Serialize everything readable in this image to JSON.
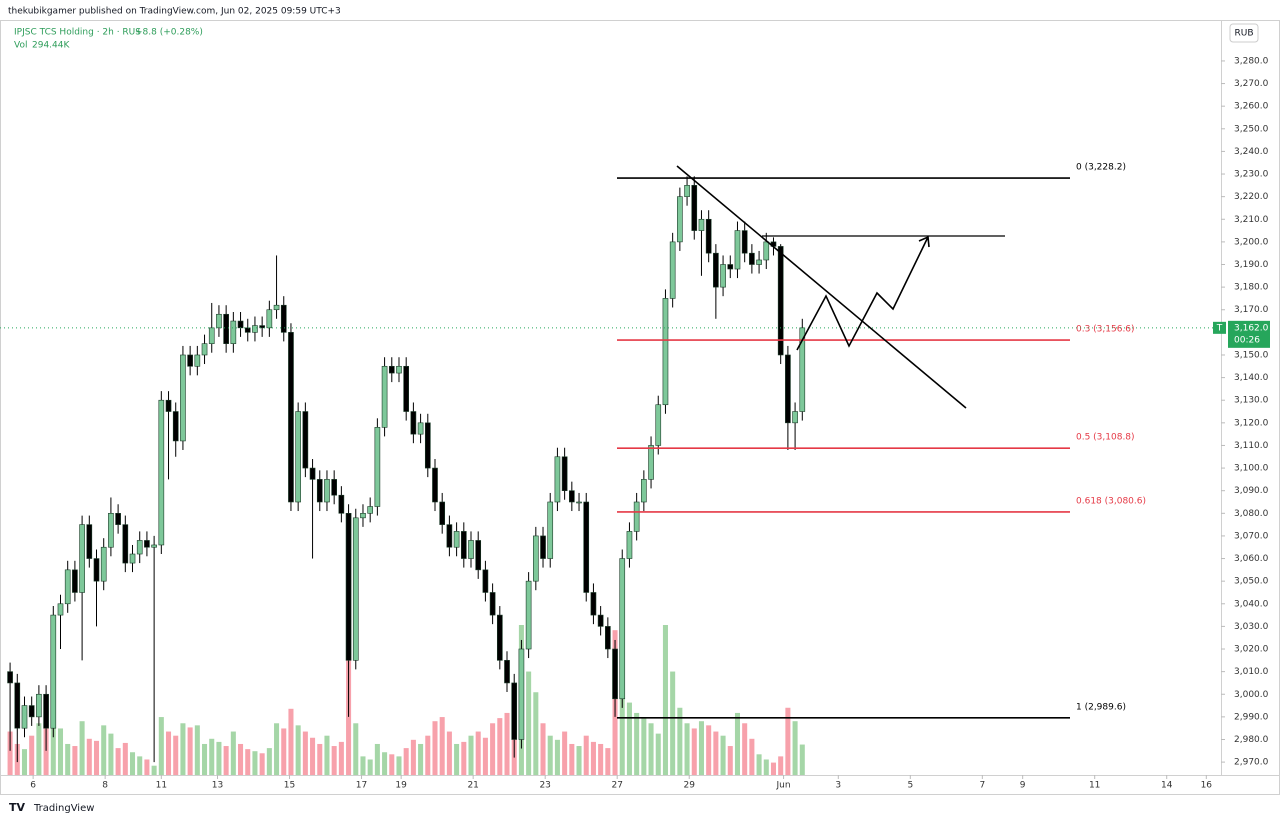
{
  "header": {
    "publisher": "thekubikgamer published on TradingView.com, Jun 02, 2025 09:59 UTC+3",
    "symbol": "IPJSC TCS Holding · 2h · RUS",
    "change": "+8.8 (+0.28%)",
    "volume_label": "Vol",
    "volume_value": "294.44K",
    "currency": "RUB",
    "brand": "TradingView"
  },
  "chart_data": {
    "type": "candlestick",
    "up_color": "#7ec89a",
    "down_color": "#000000",
    "wick_color": "#000000",
    "up_volume_color": "#a5d6a7",
    "down_volume_color": "#f7a1ab",
    "open": [
      3010,
      3005,
      2985,
      2995,
      2990,
      3000,
      2985,
      3035,
      3040,
      3055,
      3045,
      3075,
      3060,
      3050,
      3065,
      3080,
      3075,
      3058,
      3062,
      3068,
      3065,
      3066,
      3130,
      3125,
      3112,
      3150,
      3145,
      3150,
      3155,
      3162,
      3168,
      3155,
      3165,
      3162,
      3160,
      3163,
      3162,
      3170,
      3172,
      3160,
      3085,
      3125,
      3100,
      3095,
      3085,
      3095,
      3088,
      3080,
      3015,
      3078,
      3080,
      3083,
      3118,
      3145,
      3142,
      3145,
      3125,
      3115,
      3120,
      3100,
      3085,
      3075,
      3065,
      3072,
      3060,
      3068,
      3055,
      3045,
      3035,
      3015,
      3005,
      2980,
      3020,
      3050,
      3070,
      3060,
      3085,
      3105,
      3090,
      3085,
      3085,
      3045,
      3035,
      3030,
      3020,
      2998,
      3060,
      3072,
      3085,
      3095,
      3110,
      3128,
      3175,
      3200,
      3220,
      3225,
      3205,
      3210,
      3195,
      3180,
      3190,
      3188,
      3205,
      3195,
      3190,
      3192,
      3200,
      3198,
      3150,
      3120,
      3125
    ],
    "high": [
      3014,
      3009,
      2999,
      2999,
      3004,
      3004,
      3039,
      3044,
      3059,
      3059,
      3079,
      3079,
      3064,
      3069,
      3087,
      3084,
      3079,
      3066,
      3072,
      3072,
      3070,
      3134,
      3134,
      3129,
      3154,
      3154,
      3154,
      3159,
      3173,
      3172,
      3172,
      3169,
      3169,
      3166,
      3167,
      3167,
      3174,
      3194,
      3176,
      3164,
      3129,
      3129,
      3104,
      3099,
      3099,
      3099,
      3092,
      3084,
      3082,
      3084,
      3087,
      3122,
      3149,
      3149,
      3149,
      3149,
      3129,
      3124,
      3124,
      3104,
      3089,
      3079,
      3076,
      3076,
      3072,
      3072,
      3059,
      3049,
      3039,
      3019,
      3009,
      3024,
      3054,
      3074,
      3074,
      3089,
      3109,
      3109,
      3094,
      3089,
      3089,
      3049,
      3039,
      3034,
      3024,
      3064,
      3076,
      3089,
      3099,
      3114,
      3132,
      3179,
      3204,
      3224,
      3229,
      3229,
      3214,
      3214,
      3199,
      3194,
      3194,
      3209,
      3209,
      3199,
      3196,
      3204,
      3202,
      3199,
      3154,
      3129,
      3166
    ],
    "low": [
      2975,
      2970,
      2981,
      2986,
      2986,
      2975,
      2981,
      3020,
      3036,
      3041,
      3015,
      3056,
      3030,
      3046,
      3061,
      3071,
      3054,
      3054,
      3058,
      3061,
      2970,
      3062,
      3095,
      3105,
      3108,
      3141,
      3141,
      3146,
      3151,
      3158,
      3151,
      3151,
      3158,
      3156,
      3156,
      3158,
      3158,
      3166,
      3156,
      3081,
      3081,
      3096,
      3060,
      3081,
      3081,
      3084,
      3076,
      2990,
      3011,
      3074,
      3076,
      3079,
      3114,
      3138,
      3138,
      3121,
      3111,
      3111,
      3096,
      3081,
      3071,
      3061,
      3061,
      3056,
      3056,
      3051,
      3041,
      3031,
      3011,
      3001,
      2972,
      2976,
      3016,
      3046,
      3056,
      3056,
      3081,
      3086,
      3081,
      3081,
      3041,
      3031,
      3026,
      3016,
      2990,
      2994,
      3056,
      3068,
      3081,
      3091,
      3106,
      3124,
      3171,
      3196,
      3216,
      3201,
      3185,
      3191,
      3166,
      3176,
      3184,
      3184,
      3191,
      3186,
      3186,
      3188,
      3194,
      3146,
      3108,
      3108,
      3121
    ],
    "close": [
      3005,
      2985,
      2995,
      2990,
      3000,
      2985,
      3035,
      3040,
      3055,
      3045,
      3075,
      3060,
      3050,
      3065,
      3080,
      3075,
      3058,
      3062,
      3068,
      3065,
      3066,
      3130,
      3125,
      3112,
      3150,
      3145,
      3150,
      3155,
      3162,
      3168,
      3155,
      3165,
      3162,
      3160,
      3163,
      3162,
      3170,
      3172,
      3160,
      3085,
      3125,
      3100,
      3095,
      3085,
      3095,
      3088,
      3080,
      3015,
      3078,
      3080,
      3083,
      3118,
      3145,
      3142,
      3145,
      3125,
      3115,
      3120,
      3100,
      3085,
      3075,
      3065,
      3072,
      3060,
      3068,
      3055,
      3045,
      3035,
      3015,
      3005,
      2980,
      3020,
      3050,
      3070,
      3060,
      3085,
      3105,
      3090,
      3085,
      3085,
      3045,
      3035,
      3030,
      3020,
      2998,
      3060,
      3072,
      3085,
      3095,
      3110,
      3128,
      3175,
      3200,
      3220,
      3225,
      3205,
      3210,
      3195,
      3180,
      3190,
      3188,
      3205,
      3195,
      3190,
      3192,
      3200,
      3198,
      3150,
      3120,
      3125,
      3162
    ],
    "volume": [
      420,
      300,
      250,
      380,
      500,
      620,
      700,
      450,
      300,
      280,
      520,
      350,
      330,
      480,
      400,
      260,
      310,
      220,
      180,
      150,
      90,
      560,
      420,
      380,
      500,
      460,
      480,
      300,
      350,
      320,
      280,
      420,
      300,
      250,
      230,
      210,
      260,
      500,
      450,
      640,
      480,
      420,
      360,
      300,
      380,
      280,
      320,
      1200,
      500,
      180,
      150,
      300,
      220,
      200,
      180,
      260,
      340,
      300,
      380,
      520,
      560,
      420,
      300,
      320,
      380,
      420,
      360,
      500,
      550,
      600,
      700,
      1450,
      1000,
      800,
      500,
      380,
      340,
      420,
      300,
      280,
      380,
      320,
      300,
      260,
      1400,
      900,
      700,
      600,
      550,
      500,
      400,
      1450,
      1000,
      650,
      500,
      450,
      520,
      480,
      420,
      380,
      280,
      600,
      500,
      350,
      200,
      150,
      120,
      180,
      650,
      520,
      294.44
    ],
    "xlim": [
      -1.4,
      168
    ],
    "xticks": [
      {
        "value": 3.2,
        "label": "6"
      },
      {
        "value": 13.2,
        "label": "8"
      },
      {
        "value": 21,
        "label": "11"
      },
      {
        "value": 28.8,
        "label": "13"
      },
      {
        "value": 38.8,
        "label": "15"
      },
      {
        "value": 48.8,
        "label": "17"
      },
      {
        "value": 54.3,
        "label": "19"
      },
      {
        "value": 64.3,
        "label": "21"
      },
      {
        "value": 74.3,
        "label": "23"
      },
      {
        "value": 84.3,
        "label": "27"
      },
      {
        "value": 94.3,
        "label": "29"
      },
      {
        "value": 107.4,
        "label": "Jun"
      },
      {
        "value": 115,
        "label": "3"
      },
      {
        "value": 125,
        "label": "5"
      },
      {
        "value": 135,
        "label": "7"
      },
      {
        "value": 140.6,
        "label": "9"
      },
      {
        "value": 150.6,
        "label": "11"
      },
      {
        "value": 160.6,
        "label": "14"
      },
      {
        "value": 166.1,
        "label": "16"
      }
    ],
    "ylim": [
      2964.3,
      3298.1
    ],
    "yticks": [
      {
        "value": 2970,
        "label": "2,970.0"
      },
      {
        "value": 2980,
        "label": "2,980.0"
      },
      {
        "value": 2990,
        "label": "2,990.0"
      },
      {
        "value": 3000,
        "label": "3,000.0"
      },
      {
        "value": 3010,
        "label": "3,010.0"
      },
      {
        "value": 3020,
        "label": "3,020.0"
      },
      {
        "value": 3030,
        "label": "3,030.0"
      },
      {
        "value": 3040,
        "label": "3,040.0"
      },
      {
        "value": 3050,
        "label": "3,050.0"
      },
      {
        "value": 3060,
        "label": "3,060.0"
      },
      {
        "value": 3070,
        "label": "3,070.0"
      },
      {
        "value": 3080,
        "label": "3,080.0"
      },
      {
        "value": 3090,
        "label": "3,090.0"
      },
      {
        "value": 3100,
        "label": "3,100.0"
      },
      {
        "value": 3110,
        "label": "3,110.0"
      },
      {
        "value": 3120,
        "label": "3,120.0"
      },
      {
        "value": 3130,
        "label": "3,130.0"
      },
      {
        "value": 3140,
        "label": "3,140.0"
      },
      {
        "value": 3150,
        "label": "3,150.0"
      },
      {
        "value": 3160,
        "label": "3,160.0"
      },
      {
        "value": 3170,
        "label": "3,170.0"
      },
      {
        "value": 3180,
        "label": "3,180.0"
      },
      {
        "value": 3190,
        "label": "3,190.0"
      },
      {
        "value": 3200,
        "label": "3,200.0"
      },
      {
        "value": 3210,
        "label": "3,210.0"
      },
      {
        "value": 3220,
        "label": "3,220.0"
      },
      {
        "value": 3230,
        "label": "3,230.0"
      },
      {
        "value": 3240,
        "label": "3,240.0"
      },
      {
        "value": 3250,
        "label": "3,250.0"
      },
      {
        "value": 3260,
        "label": "3,260.0"
      },
      {
        "value": 3270,
        "label": "3,270.0"
      },
      {
        "value": 3280,
        "label": "3,280.0"
      }
    ],
    "fib_levels": [
      {
        "value": 3228.2,
        "label": "0 (3,228.2)",
        "color": "#000000"
      },
      {
        "value": 3156.6,
        "label": "0.3 (3,156.6)",
        "color": "#e53946"
      },
      {
        "value": 3108.8,
        "label": "0.5 (3,108.8)",
        "color": "#e53946"
      },
      {
        "value": 3080.6,
        "label": "0.618 (3,080.6)",
        "color": "#e53946"
      },
      {
        "value": 2989.6,
        "label": "1 (2,989.6)",
        "color": "#000000"
      }
    ],
    "last_price": {
      "value": 3162.0,
      "label": "3,162.0"
    },
    "countdown": "00:26",
    "price_marker": "T",
    "price_color": "#26a65b"
  }
}
